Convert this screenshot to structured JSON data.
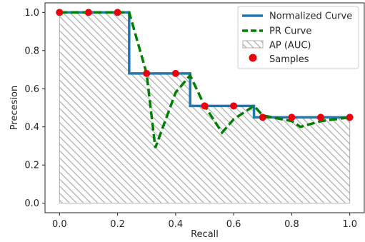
{
  "chart_data": {
    "type": "line",
    "xlabel": "Recall",
    "ylabel": "Precesion",
    "xlim": [
      -0.05,
      1.05
    ],
    "ylim": [
      -0.05,
      1.05
    ],
    "xticks": [
      "0.0",
      "0.2",
      "0.4",
      "0.6",
      "0.8",
      "1.0"
    ],
    "yticks": [
      "0.0",
      "0.2",
      "0.4",
      "0.6",
      "0.8",
      "1.0"
    ],
    "grid": false,
    "legend_position": "top-right",
    "series": [
      {
        "name": "Normalized Curve",
        "kind": "step-line",
        "color": "#1f77b4",
        "x": [
          0.0,
          0.24,
          0.24,
          0.45,
          0.45,
          0.67,
          0.67,
          1.0
        ],
        "y": [
          1.0,
          1.0,
          0.68,
          0.68,
          0.51,
          0.51,
          0.45,
          0.45
        ]
      },
      {
        "name": "PR Curve",
        "kind": "dashed-line",
        "color": "#008000",
        "x": [
          0.0,
          0.1,
          0.2,
          0.24,
          0.3,
          0.33,
          0.4,
          0.45,
          0.5,
          0.56,
          0.6,
          0.67,
          0.7,
          0.8,
          0.83,
          0.9,
          1.0
        ],
        "y": [
          1.0,
          1.0,
          1.0,
          1.0,
          0.68,
          0.29,
          0.58,
          0.67,
          0.51,
          0.37,
          0.44,
          0.51,
          0.46,
          0.43,
          0.4,
          0.43,
          0.45
        ]
      },
      {
        "name": "AP (AUC)",
        "kind": "hatched-area",
        "color": "#b0b0b0"
      },
      {
        "name": "Samples",
        "kind": "scatter",
        "color": "#e8000b",
        "x": [
          0.0,
          0.1,
          0.2,
          0.3,
          0.4,
          0.5,
          0.6,
          0.7,
          0.8,
          0.9,
          1.0
        ],
        "y": [
          1.0,
          1.0,
          1.0,
          0.68,
          0.68,
          0.51,
          0.51,
          0.45,
          0.45,
          0.45,
          0.45
        ]
      }
    ]
  }
}
